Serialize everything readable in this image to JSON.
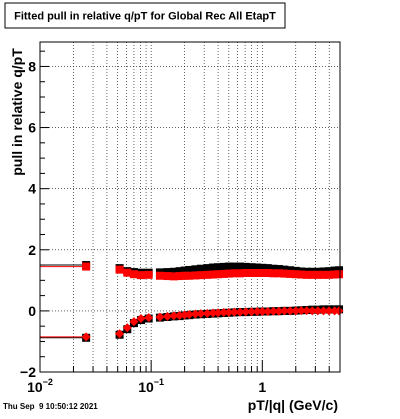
{
  "chart_data": {
    "type": "scatter",
    "title": "Fitted pull in relative q/pT for Global Rec All EtapT",
    "xlabel": "pT/|q| (GeV/c)",
    "ylabel": "pull in relative q/pT",
    "xscale": "log",
    "xlim": [
      0.01,
      5
    ],
    "ylim": [
      -2,
      8.8
    ],
    "grid": true,
    "x_ticks": [
      {
        "value": 0.01,
        "base": "10",
        "exp": "−2"
      },
      {
        "value": 0.1,
        "base": "10",
        "exp": "−1"
      },
      {
        "value": 1,
        "base": "1",
        "exp": ""
      }
    ],
    "y_ticks": [
      {
        "value": -2,
        "label": "−2"
      },
      {
        "value": 0,
        "label": "0"
      },
      {
        "value": 2,
        "label": "2"
      },
      {
        "value": 4,
        "label": "4"
      },
      {
        "value": 6,
        "label": "6"
      },
      {
        "value": 8,
        "label": "8"
      }
    ],
    "series": [
      {
        "color": "#000000",
        "marker": "square",
        "x": [
          0.026,
          0.052,
          0.061,
          0.07,
          0.081,
          0.095,
          0.12,
          0.14,
          0.16,
          0.18,
          0.2,
          0.22,
          0.25,
          0.28,
          0.32,
          0.36,
          0.4,
          0.45,
          0.5,
          0.56,
          0.63,
          0.71,
          0.8,
          0.9,
          1.0,
          1.12,
          1.26,
          1.41,
          1.58,
          1.78,
          2.0,
          2.24,
          2.51,
          2.82,
          3.16,
          3.55,
          3.98,
          4.47,
          4.9
        ],
        "y": [
          1.5,
          1.4,
          1.3,
          1.27,
          1.25,
          1.25,
          1.26,
          1.27,
          1.28,
          1.3,
          1.32,
          1.34,
          1.36,
          1.38,
          1.4,
          1.42,
          1.43,
          1.44,
          1.45,
          1.45,
          1.45,
          1.44,
          1.43,
          1.42,
          1.41,
          1.4,
          1.38,
          1.37,
          1.35,
          1.33,
          1.31,
          1.29,
          1.28,
          1.28,
          1.28,
          1.29,
          1.3,
          1.32,
          1.33
        ]
      },
      {
        "color": "#ff0000",
        "marker": "square",
        "x": [
          0.026,
          0.052,
          0.061,
          0.07,
          0.081,
          0.095,
          0.12,
          0.14,
          0.16,
          0.18,
          0.2,
          0.22,
          0.25,
          0.28,
          0.32,
          0.36,
          0.4,
          0.45,
          0.5,
          0.56,
          0.63,
          0.71,
          0.8,
          0.9,
          1.0,
          1.12,
          1.26,
          1.41,
          1.58,
          1.78,
          2.0,
          2.24,
          2.51,
          2.82,
          3.16,
          3.55,
          3.98,
          4.47,
          4.9
        ],
        "y": [
          1.45,
          1.35,
          1.25,
          1.2,
          1.17,
          1.18,
          1.15,
          1.14,
          1.13,
          1.14,
          1.15,
          1.15,
          1.16,
          1.17,
          1.18,
          1.19,
          1.2,
          1.21,
          1.22,
          1.23,
          1.23,
          1.24,
          1.24,
          1.24,
          1.24,
          1.24,
          1.23,
          1.23,
          1.22,
          1.21,
          1.2,
          1.19,
          1.18,
          1.18,
          1.18,
          1.18,
          1.18,
          1.19,
          1.2
        ]
      },
      {
        "color": "#000000",
        "marker": "square",
        "x": [
          0.026,
          0.052,
          0.061,
          0.07,
          0.081,
          0.095,
          0.12,
          0.14,
          0.16,
          0.18,
          0.2,
          0.22,
          0.25,
          0.28,
          0.32,
          0.36,
          0.4,
          0.45,
          0.5,
          0.56,
          0.63,
          0.71,
          0.8,
          0.9,
          1.0,
          1.12,
          1.26,
          1.41,
          1.58,
          1.78,
          2.0,
          2.24,
          2.51,
          2.82,
          3.16,
          3.55,
          3.98,
          4.47,
          4.9
        ],
        "y": [
          -0.88,
          -0.78,
          -0.6,
          -0.4,
          -0.3,
          -0.25,
          -0.22,
          -0.2,
          -0.18,
          -0.17,
          -0.15,
          -0.14,
          -0.12,
          -0.11,
          -0.1,
          -0.09,
          -0.08,
          -0.07,
          -0.06,
          -0.05,
          -0.04,
          -0.04,
          -0.03,
          -0.03,
          -0.02,
          -0.02,
          -0.01,
          -0.01,
          0.0,
          0.0,
          0.01,
          0.02,
          0.03,
          0.04,
          0.04,
          0.05,
          0.05,
          0.05,
          0.05
        ]
      },
      {
        "color": "#ff0000",
        "marker": "diamond",
        "x": [
          0.026,
          0.052,
          0.061,
          0.07,
          0.081,
          0.095,
          0.12,
          0.14,
          0.16,
          0.18,
          0.2,
          0.22,
          0.25,
          0.28,
          0.32,
          0.36,
          0.4,
          0.45,
          0.5,
          0.56,
          0.63,
          0.71,
          0.8,
          0.9,
          1.0,
          1.12,
          1.26,
          1.41,
          1.58,
          1.78,
          2.0,
          2.24,
          2.51,
          2.82,
          3.16,
          3.55,
          3.98,
          4.47,
          4.9
        ],
        "y": [
          -0.85,
          -0.75,
          -0.55,
          -0.35,
          -0.25,
          -0.22,
          -0.2,
          -0.18,
          -0.16,
          -0.15,
          -0.13,
          -0.12,
          -0.1,
          -0.09,
          -0.08,
          -0.07,
          -0.06,
          -0.05,
          -0.05,
          -0.04,
          -0.04,
          -0.03,
          -0.03,
          -0.02,
          -0.02,
          -0.02,
          -0.01,
          -0.01,
          0.0,
          0.0,
          0.0,
          0.01,
          0.01,
          0.0,
          0.0,
          0.0,
          0.0,
          0.0,
          0.0
        ]
      }
    ],
    "reference_lines": [
      {
        "color": "#000000",
        "x_from": 0.01,
        "x_to": 0.026,
        "y": 1.5
      },
      {
        "color": "#ff0000",
        "x_from": 0.01,
        "x_to": 0.026,
        "y": 1.45
      },
      {
        "color": "#000000",
        "x_from": 0.01,
        "x_to": 0.026,
        "y": -0.88
      },
      {
        "color": "#ff0000",
        "x_from": 0.01,
        "x_to": 0.026,
        "y": -0.85
      }
    ]
  },
  "footer": {
    "timestamp": "Thu Sep  9 10:50:12 2021"
  }
}
